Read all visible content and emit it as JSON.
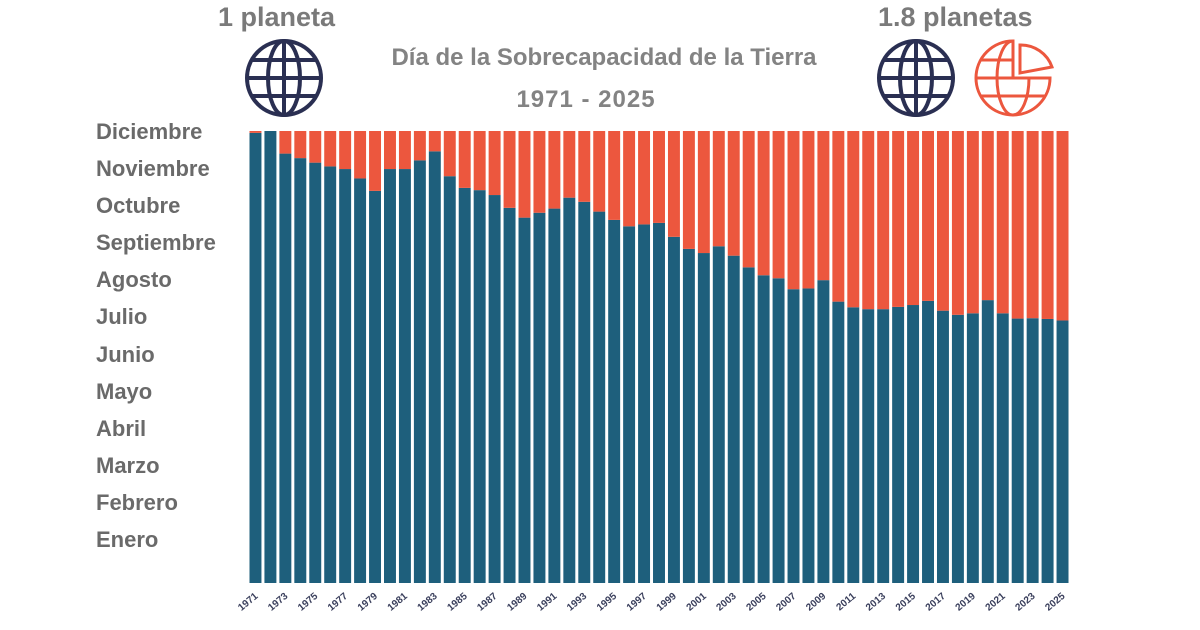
{
  "header": {
    "left_label": "1 planeta",
    "right_label": "1.8 planetas",
    "title": "Día de la Sobrecapacidad de la Tierra",
    "subtitle": "1971 - 2025"
  },
  "icons": {
    "left": "globe-icon",
    "right_full": "globe-icon",
    "right_partial": "partial-globe-icon"
  },
  "colors": {
    "overshoot": "#1e5f7c",
    "remaining": "#ec573e",
    "globe": "#2a2f52",
    "text": "#6a6a6a"
  },
  "chart_data": {
    "type": "bar",
    "stacked": true,
    "title": "Día de la Sobrecapacidad de la Tierra",
    "subtitle": "1971 - 2025",
    "x": [
      1971,
      1972,
      1973,
      1974,
      1975,
      1976,
      1977,
      1978,
      1979,
      1980,
      1981,
      1982,
      1983,
      1984,
      1985,
      1986,
      1987,
      1988,
      1989,
      1990,
      1991,
      1992,
      1993,
      1994,
      1995,
      1996,
      1997,
      1998,
      1999,
      2000,
      2001,
      2002,
      2003,
      2004,
      2005,
      2006,
      2007,
      2008,
      2009,
      2010,
      2011,
      2012,
      2013,
      2014,
      2015,
      2016,
      2017,
      2018,
      2019,
      2020,
      2021,
      2022,
      2023,
      2024,
      2025
    ],
    "x_tick_labels": [
      "1971",
      "1973",
      "1975",
      "1977",
      "1979",
      "1981",
      "1983",
      "1985",
      "1987",
      "1989",
      "1991",
      "1993",
      "1995",
      "1997",
      "1999",
      "2001",
      "2003",
      "2005",
      "2007",
      "2009",
      "2011",
      "2013",
      "2015",
      "2017",
      "2019",
      "2021",
      "2023",
      "2025"
    ],
    "y_tick_labels": [
      "Enero",
      "Febrero",
      "Marzo",
      "Abril",
      "Mayo",
      "Junio",
      "Julio",
      "Agosto",
      "Septiembre",
      "Octubre",
      "Noviembre",
      "Diciembre"
    ],
    "ylim": [
      0,
      12
    ],
    "series": [
      {
        "values": [
          11.95,
          12.0,
          11.4,
          11.28,
          11.16,
          11.06,
          10.99,
          10.74,
          10.41,
          10.99,
          10.99,
          11.22,
          11.46,
          10.8,
          10.49,
          10.43,
          10.3,
          9.96,
          9.7,
          9.83,
          9.94,
          10.23,
          10.12,
          9.86,
          9.64,
          9.47,
          9.52,
          9.56,
          9.19,
          8.87,
          8.76,
          8.94,
          8.69,
          8.38,
          8.17,
          8.09,
          7.8,
          7.82,
          8.04,
          7.47,
          7.32,
          7.27,
          7.27,
          7.33,
          7.38,
          7.49,
          7.23,
          7.12,
          7.16,
          7.51,
          7.16,
          7.02,
          7.03,
          7.01,
          6.97
        ]
      },
      {
        "values": [
          0.05,
          0.0,
          0.6,
          0.72,
          0.84,
          0.94,
          1.01,
          1.26,
          1.59,
          1.01,
          1.01,
          0.78,
          0.54,
          1.2,
          1.51,
          1.57,
          1.7,
          2.04,
          2.3,
          2.17,
          2.06,
          1.77,
          1.88,
          2.14,
          2.36,
          2.53,
          2.48,
          2.44,
          2.81,
          3.13,
          3.24,
          3.06,
          3.31,
          3.62,
          3.83,
          3.91,
          4.2,
          4.18,
          3.96,
          4.53,
          4.68,
          4.73,
          4.73,
          4.67,
          4.62,
          4.51,
          4.77,
          4.88,
          4.84,
          4.49,
          4.84,
          4.98,
          4.97,
          4.99,
          5.03
        ]
      }
    ]
  }
}
